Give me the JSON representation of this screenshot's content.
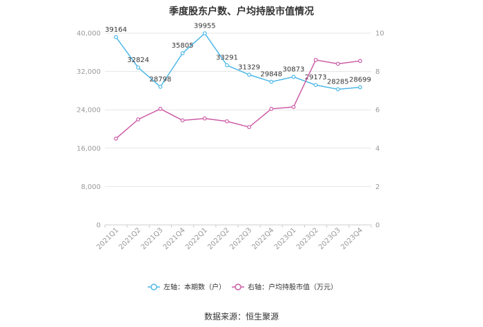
{
  "title": "季度股东户数、户均持股市值情况",
  "source": "数据来源：恒生聚源",
  "colors": {
    "left": "#4db8e8",
    "right": "#cc5aa5",
    "grid": "#e6e6e6",
    "axis": "#999999"
  },
  "chart_data": {
    "type": "line",
    "categories": [
      "2021Q1",
      "2021Q2",
      "2021Q3",
      "2021Q4",
      "2022Q1",
      "2022Q2",
      "2022Q3",
      "2022Q4",
      "2023Q1",
      "2023Q2",
      "2023Q3",
      "2023Q4"
    ],
    "y_left": {
      "min": 0,
      "max": 40000,
      "ticks": [
        "0",
        "8,000",
        "16,000",
        "24,000",
        "32,000",
        "40,000"
      ],
      "tick_values": [
        0,
        8000,
        16000,
        24000,
        32000,
        40000
      ]
    },
    "y_right": {
      "min": 0,
      "max": 10,
      "ticks": [
        "0",
        "2",
        "4",
        "6",
        "8",
        "10"
      ],
      "tick_values": [
        0,
        2,
        4,
        6,
        8,
        10
      ]
    },
    "series": [
      {
        "name": "左轴：本期数（户）",
        "axis": "left",
        "values": [
          39164,
          32824,
          28798,
          35805,
          39955,
          33291,
          31329,
          29848,
          30873,
          29173,
          28285,
          28699
        ],
        "labels": [
          "39164",
          "32824",
          "28798",
          "35805",
          "39955",
          "33291",
          "31329",
          "29848",
          "30873",
          "29173",
          "28285",
          "28699"
        ]
      },
      {
        "name": "右轴：户均持股市值（万元）",
        "axis": "right",
        "values": [
          4.5,
          5.5,
          6.05,
          5.45,
          5.55,
          5.4,
          5.1,
          6.05,
          6.15,
          8.6,
          8.4,
          8.55
        ]
      }
    ],
    "grid": true,
    "legend": "bottom"
  }
}
